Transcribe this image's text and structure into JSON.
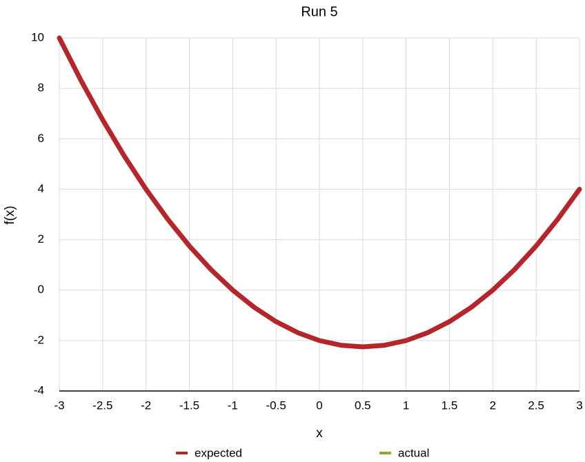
{
  "chart_data": {
    "type": "line",
    "title": "Run 5",
    "x_label": "x",
    "y_label": "f(x)",
    "x": [
      -3,
      -2.75,
      -2.5,
      -2.25,
      -2,
      -1.75,
      -1.5,
      -1.25,
      -1,
      -0.75,
      -0.5,
      -0.25,
      0,
      0.25,
      0.5,
      0.75,
      1,
      1.25,
      1.5,
      1.75,
      2,
      2.25,
      2.5,
      2.75,
      3
    ],
    "series": [
      {
        "name": "expected",
        "color": "#b5262b",
        "values": [
          10,
          8.3125,
          6.75,
          5.3125,
          4,
          2.8125,
          1.75,
          0.8125,
          0,
          -0.6875,
          -1.25,
          -1.6875,
          -2,
          -2.1875,
          -2.25,
          -2.1875,
          -2,
          -1.6875,
          -1.25,
          -0.6875,
          0,
          0.8125,
          1.75,
          2.8125,
          4
        ]
      },
      {
        "name": "actual",
        "color": "#8cab3a",
        "values": [
          10,
          8.3125,
          6.75,
          5.3125,
          4,
          2.8125,
          1.75,
          0.8125,
          0,
          -0.6875,
          -1.25,
          -1.6875,
          -2,
          -2.1875,
          -2.25,
          -2.1875,
          -2,
          -1.6875,
          -1.25,
          -0.6875,
          0,
          0.8125,
          1.75,
          2.8125,
          4
        ]
      }
    ],
    "xlim": [
      -3,
      3
    ],
    "xticks": [
      -3,
      -2.5,
      -2,
      -1.5,
      -1,
      -0.5,
      0,
      0.5,
      1,
      1.5,
      2,
      2.5,
      3
    ],
    "ylim": [
      -4,
      10
    ],
    "yticks": [
      -4,
      -2,
      0,
      2,
      4,
      6,
      8,
      10
    ],
    "grid": true,
    "legend": "bottom"
  }
}
